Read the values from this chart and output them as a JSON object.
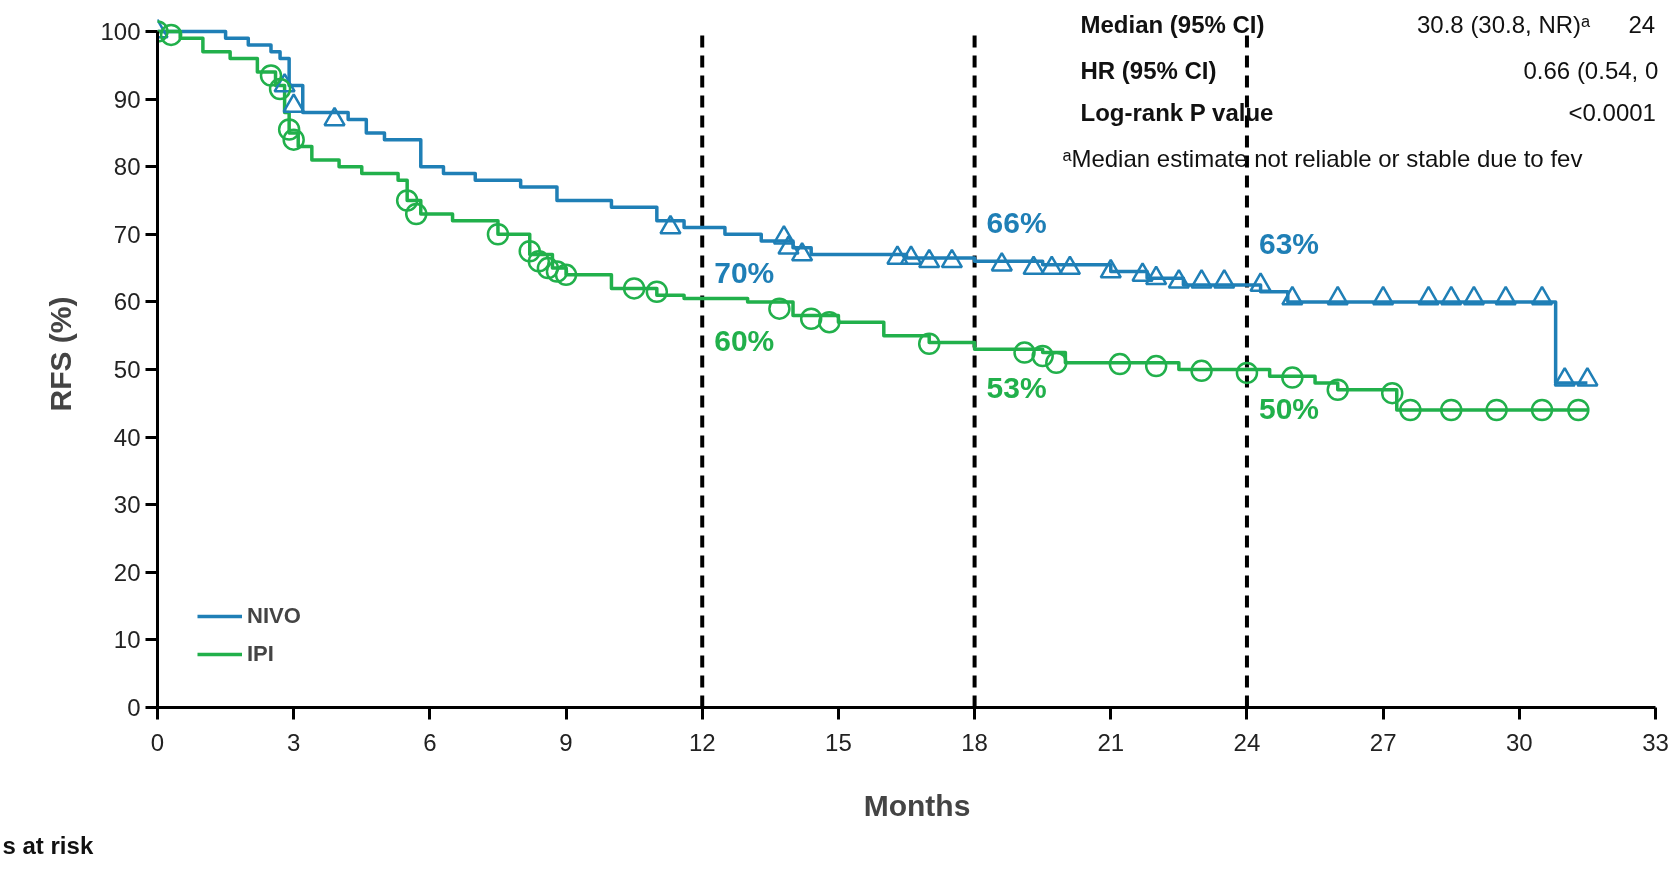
{
  "chart_data": {
    "type": "step",
    "xlabel": "Months",
    "ylabel": "RFS (%)",
    "xlim": [
      0,
      33
    ],
    "xticks": [
      0,
      3,
      6,
      9,
      12,
      15,
      18,
      21,
      24,
      27,
      30,
      33
    ],
    "ylim": [
      0,
      100
    ],
    "yticks": [
      0,
      10,
      20,
      30,
      40,
      50,
      60,
      70,
      80,
      90,
      100
    ],
    "grid": false,
    "legend": "bottom left",
    "line_style": "solid",
    "series": [
      {
        "name": "NIVO",
        "color": "#1f7fb6",
        "x": [
          0,
          1.5,
          2.0,
          2.5,
          2.7,
          2.9,
          3.2,
          4.2,
          4.6,
          5.0,
          5.8,
          6.3,
          7.0,
          8.0,
          8.8,
          10.0,
          11.0,
          11.6,
          12.5,
          13.3,
          14.0,
          14.4,
          16.5,
          18.0,
          19.5,
          21.0,
          21.8,
          22.6,
          24.3,
          24.9,
          30.8,
          31.5
        ],
        "values": [
          100,
          99,
          98,
          97,
          96,
          92,
          88,
          87,
          85,
          84,
          80,
          79,
          78,
          77,
          75,
          74,
          72,
          71,
          70,
          69,
          68,
          67,
          66.5,
          66,
          65.5,
          64.5,
          63.5,
          62.5,
          61.5,
          60,
          48,
          48
        ]
      },
      {
        "name": "IPI",
        "color": "#21b04b",
        "x": [
          0,
          0.5,
          1.0,
          1.6,
          2.2,
          2.6,
          2.8,
          2.9,
          3.1,
          3.4,
          4.0,
          4.5,
          5.3,
          5.5,
          5.8,
          6.5,
          7.5,
          8.2,
          8.7,
          9.0,
          10.0,
          11.0,
          11.6,
          13.0,
          14.0,
          15.0,
          16.0,
          17.0,
          18.0,
          19.5,
          20.0,
          22.5,
          24.5,
          25.5,
          26.0,
          27.3,
          31.5
        ],
        "values": [
          100,
          99,
          97,
          96,
          94,
          92,
          88,
          85,
          83,
          81,
          80,
          79,
          78,
          75,
          73,
          72,
          70,
          67,
          65,
          64,
          62,
          61,
          60.5,
          60,
          58,
          57,
          55,
          54,
          53,
          52.5,
          51,
          50,
          49,
          48,
          47,
          44,
          44
        ]
      },
      {
        "type": "scatter",
        "color": "#1f7fb6",
        "marker": "triangle",
        "x": [
          0,
          2.8,
          3.0,
          3.9,
          11.3,
          13.8,
          13.9,
          14.2,
          16.3,
          16.6,
          17.0,
          17.5,
          18.6,
          19.3,
          19.7,
          20.1,
          21.0,
          21.7,
          22.0,
          22.5,
          23.0,
          23.5,
          24.3,
          25.0,
          26.0,
          27.0,
          28.0,
          28.5,
          29.0,
          29.7,
          30.5,
          31.0,
          31.5
        ],
        "values": [
          100,
          92,
          89,
          87,
          71,
          69.5,
          68,
          67,
          66.5,
          66.5,
          66,
          66,
          65.5,
          65,
          65,
          65,
          64.5,
          64,
          63.5,
          63,
          63,
          63,
          62.5,
          60.5,
          60.5,
          60.5,
          60.5,
          60.5,
          60.5,
          60.5,
          60.5,
          48.5,
          48.5
        ]
      },
      {
        "type": "scatter",
        "color": "#21b04b",
        "marker": "circle",
        "x": [
          0,
          0.3,
          2.5,
          2.7,
          2.9,
          3.0,
          5.5,
          5.7,
          7.5,
          8.2,
          8.4,
          8.6,
          8.8,
          9.0,
          10.5,
          11.0,
          13.7,
          14.4,
          14.8,
          17.0,
          19.1,
          19.5,
          19.8,
          21.2,
          22.0,
          23.0,
          24.0,
          25.0,
          26.0,
          27.2,
          27.6,
          28.5,
          29.5,
          30.5,
          31.3
        ],
        "values": [
          100,
          99.5,
          93.5,
          91.5,
          85.5,
          84,
          75,
          73,
          70,
          67.5,
          66,
          65,
          64.5,
          64,
          62,
          61.5,
          59,
          57.5,
          57,
          53.8,
          52.5,
          52,
          51,
          50.8,
          50.5,
          49.8,
          49.5,
          48.8,
          47,
          46.5,
          44,
          44,
          44,
          44,
          44
        ]
      }
    ],
    "ref_lines": [
      {
        "axis": "x",
        "value": 12,
        "color": "#000000",
        "line_style": "dashed"
      },
      {
        "axis": "x",
        "value": 18,
        "color": "#000000",
        "line_style": "dashed"
      },
      {
        "axis": "x",
        "value": 24,
        "color": "#000000",
        "line_style": "dashed"
      }
    ],
    "annotations": [
      {
        "text": "70%",
        "x": 12,
        "y": 70
      },
      {
        "text": "60%",
        "x": 12,
        "y": 60
      },
      {
        "text": "66%",
        "x": 18,
        "y": 66
      },
      {
        "text": "53%",
        "x": 18,
        "y": 53
      },
      {
        "text": "63%",
        "x": 24,
        "y": 63
      },
      {
        "text": "50%",
        "x": 24,
        "y": 50
      },
      "Median (95% CI)",
      "30.8 (30.8, NR)ᵃ",
      "24",
      "HR (95% CI)",
      "0.66 (0.54, 0",
      "Log-rank P value",
      "<0.0001",
      "ᵃMedian estimate not reliable or stable due to fev",
      "s at risk"
    ]
  }
}
